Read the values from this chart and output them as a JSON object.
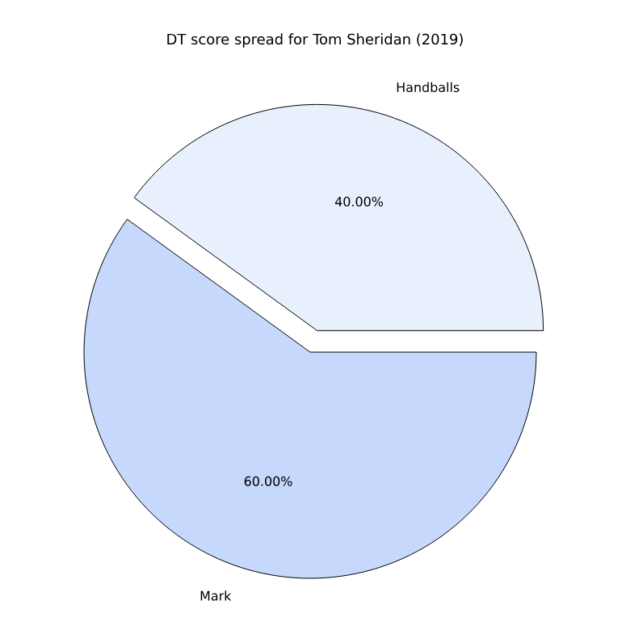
{
  "chart_data": {
    "type": "pie",
    "title": "DT score spread for Tom Sheridan (2019)",
    "categories": [
      "Handballs",
      "Mark"
    ],
    "values": [
      40,
      60
    ],
    "colors": [
      "#e8f0fe",
      "#c6d9fd"
    ],
    "value_labels": [
      "40.00%",
      "60.00%"
    ],
    "legend": false
  }
}
